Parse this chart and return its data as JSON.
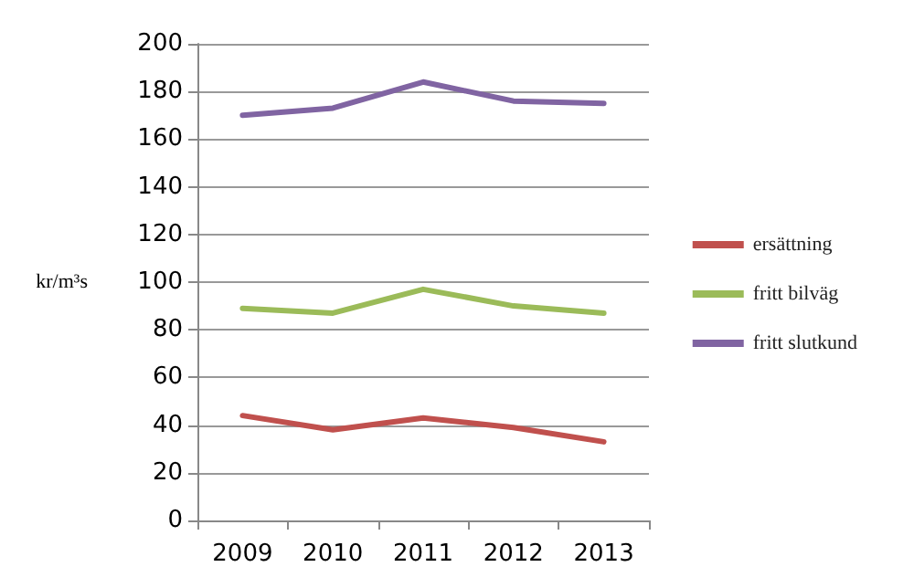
{
  "chart_data": {
    "type": "line",
    "ylabel": "kr/m³s",
    "categories": [
      "2009",
      "2010",
      "2011",
      "2012",
      "2013"
    ],
    "series": [
      {
        "name": "ersättning",
        "color": "#c0504d",
        "values": [
          44,
          38,
          43,
          39,
          33
        ]
      },
      {
        "name": "fritt bilväg",
        "color": "#9bbb59",
        "values": [
          89,
          87,
          97,
          90,
          87
        ]
      },
      {
        "name": "fritt slutkund",
        "color": "#8064a2",
        "values": [
          170,
          173,
          184,
          176,
          175
        ]
      }
    ],
    "ylim": [
      0,
      200
    ],
    "yticks": [
      0,
      20,
      40,
      60,
      80,
      100,
      120,
      140,
      160,
      180,
      200
    ],
    "grid": "y",
    "legend": "right",
    "marker": "none",
    "line_style": "solid"
  }
}
